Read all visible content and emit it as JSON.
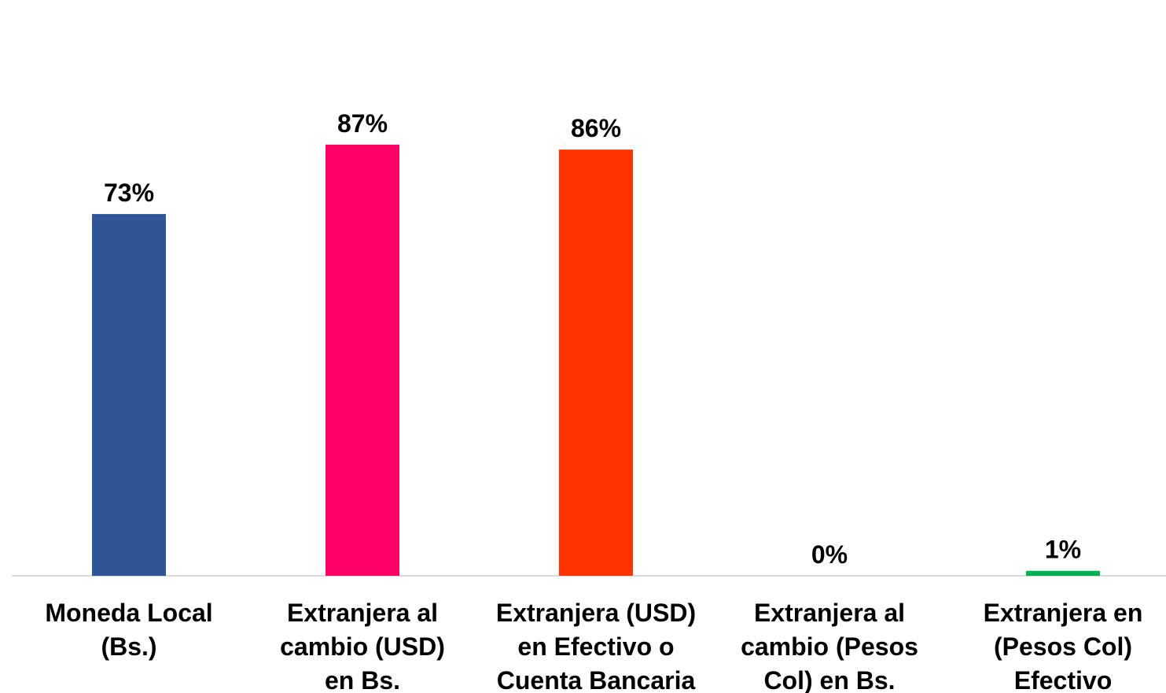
{
  "chart_data": {
    "type": "bar",
    "title": "",
    "xlabel": "",
    "ylabel": "",
    "ylim": [
      0,
      100
    ],
    "grid": false,
    "legend": "none",
    "categories": [
      [
        "Moneda Local",
        "(Bs.)"
      ],
      [
        "Extranjera al",
        "cambio (USD)",
        "en Bs."
      ],
      [
        "Extranjera (USD)",
        "en Efectivo o",
        "Cuenta Bancaria"
      ],
      [
        "Extranjera al",
        "cambio (Pesos",
        "Col) en Bs."
      ],
      [
        "Extranjera en",
        "(Pesos Col)",
        "Efectivo"
      ]
    ],
    "values": [
      73,
      87,
      86,
      0,
      1
    ],
    "value_labels": [
      "73%",
      "87%",
      "86%",
      "0%",
      "1%"
    ],
    "colors": [
      "#2F5597",
      "#FF0066",
      "#FF3300",
      "#A5A5A5",
      "#00B050"
    ]
  }
}
